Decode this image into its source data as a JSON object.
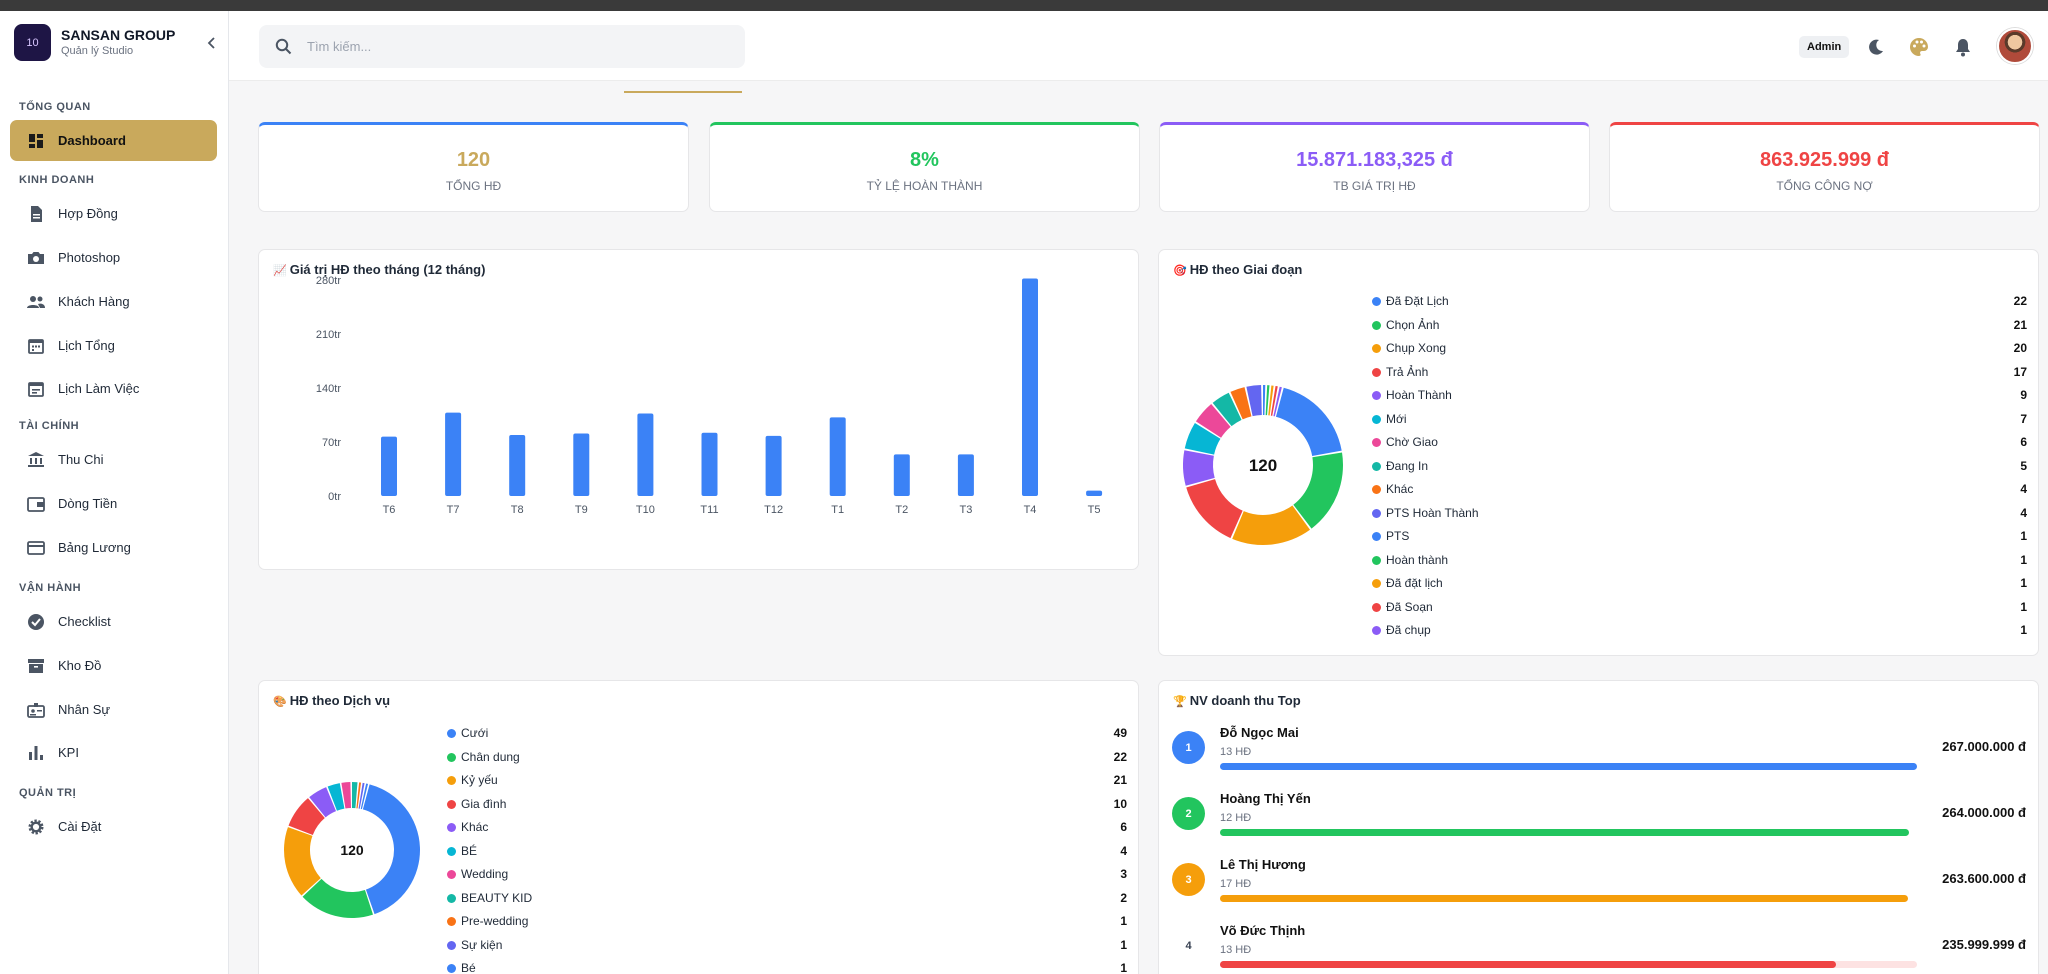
{
  "brand": {
    "name": "SANSAN GROUP",
    "subtitle": "Quản lý Studio",
    "logo_text": "10"
  },
  "sidebar": {
    "sections": [
      {
        "label": "TỔNG QUAN",
        "items": [
          {
            "label": "Dashboard",
            "icon": "dashboard-icon",
            "active": true
          }
        ]
      },
      {
        "label": "KINH DOANH",
        "items": [
          {
            "label": "Hợp Đồng",
            "icon": "document-icon"
          },
          {
            "label": "Photoshop",
            "icon": "camera-icon"
          },
          {
            "label": "Khách Hàng",
            "icon": "people-icon"
          },
          {
            "label": "Lịch Tổng",
            "icon": "calendar-icon"
          },
          {
            "label": "Lịch Làm Việc",
            "icon": "calendar-note-icon"
          }
        ]
      },
      {
        "label": "TÀI CHÍNH",
        "items": [
          {
            "label": "Thu Chi",
            "icon": "bank-icon"
          },
          {
            "label": "Dòng Tiền",
            "icon": "wallet-icon"
          },
          {
            "label": "Bảng Lương",
            "icon": "card-icon"
          }
        ]
      },
      {
        "label": "VẬN HÀNH",
        "items": [
          {
            "label": "Checklist",
            "icon": "check-circle-icon"
          },
          {
            "label": "Kho Đồ",
            "icon": "inventory-icon"
          },
          {
            "label": "Nhân Sự",
            "icon": "badge-icon"
          },
          {
            "label": "KPI",
            "icon": "bar-chart-icon"
          }
        ]
      },
      {
        "label": "QUẢN TRỊ",
        "items": [
          {
            "label": "Cài Đặt",
            "icon": "gear-icon"
          }
        ]
      }
    ]
  },
  "header": {
    "search_placeholder": "Tìm kiếm...",
    "role_badge": "Admin"
  },
  "stats": [
    {
      "value": "120",
      "label": "TỔNG HĐ",
      "color": "#c9a95c",
      "top": "#3b82f6"
    },
    {
      "value": "8%",
      "label": "TỶ LỆ HOÀN THÀNH",
      "color": "#22c55e",
      "top": "#22c55e"
    },
    {
      "value": "15.871.183,325 đ",
      "label": "TB GIÁ TRỊ HĐ",
      "color": "#8b5cf6",
      "top": "#8b5cf6"
    },
    {
      "value": "863.925.999 đ",
      "label": "TỔNG CÔNG NỢ",
      "color": "#ef4444",
      "top": "#ef4444"
    }
  ],
  "monthly": {
    "title": "Giá trị HĐ theo tháng (12 tháng)",
    "emoji": "📈"
  },
  "stage": {
    "title": "HĐ theo Giai đoạn",
    "emoji": "🎯",
    "total": "120"
  },
  "service": {
    "title": "HĐ theo Dịch vụ",
    "emoji": "🎨",
    "total": "120"
  },
  "top": {
    "title": "NV doanh thu Top",
    "emoji": "🏆",
    "employees": [
      {
        "rank": "1",
        "name": "Đỗ Ngọc Mai",
        "count": "13 HĐ",
        "amount": "267.000.000 đ",
        "fraction": 1.0,
        "color": "#3b82f6"
      },
      {
        "rank": "2",
        "name": "Hoàng Thị Yến",
        "count": "12 HĐ",
        "amount": "264.000.000 đ",
        "fraction": 0.989,
        "color": "#22c55e"
      },
      {
        "rank": "3",
        "name": "Lê Thị Hương",
        "count": "17 HĐ",
        "amount": "263.600.000 đ",
        "fraction": 0.987,
        "color": "#f59e0b"
      },
      {
        "rank": "4",
        "name": "Võ Đức Thịnh",
        "count": "13 HĐ",
        "amount": "235.999.999 đ",
        "fraction": 0.884,
        "color": "#ef4444"
      }
    ]
  },
  "chart_data": [
    {
      "type": "bar",
      "title": "Giá trị HĐ theo tháng (12 tháng)",
      "categories": [
        "T6",
        "T7",
        "T8",
        "T9",
        "T10",
        "T11",
        "T12",
        "T1",
        "T2",
        "T3",
        "T4",
        "T5"
      ],
      "values": [
        77,
        108,
        79,
        81,
        107,
        82,
        78,
        102,
        54,
        54,
        282,
        7
      ],
      "y_ticks": [
        "0tr",
        "70tr",
        "140tr",
        "210tr",
        "280tr"
      ],
      "ylim": [
        0,
        280
      ],
      "grid": false,
      "color": "#3b82f6"
    },
    {
      "type": "pie",
      "title": "HĐ theo Giai đoạn",
      "center_label": "120",
      "slices": [
        {
          "label": "Đã Đặt Lịch",
          "value": 22,
          "color": "#3b82f6"
        },
        {
          "label": "Chọn Ảnh",
          "value": 21,
          "color": "#22c55e"
        },
        {
          "label": "Chụp Xong",
          "value": 20,
          "color": "#f59e0b"
        },
        {
          "label": "Trả Ảnh",
          "value": 17,
          "color": "#ef4444"
        },
        {
          "label": "Hoàn Thành",
          "value": 9,
          "color": "#8b5cf6"
        },
        {
          "label": "Mới",
          "value": 7,
          "color": "#06b6d4"
        },
        {
          "label": "Chờ Giao",
          "value": 6,
          "color": "#ec4899"
        },
        {
          "label": "Đang In",
          "value": 5,
          "color": "#14b8a6"
        },
        {
          "label": "Khác",
          "value": 4,
          "color": "#f97316"
        },
        {
          "label": "PTS Hoàn Thành",
          "value": 4,
          "color": "#6366f1"
        },
        {
          "label": "PTS",
          "value": 1,
          "color": "#3b82f6"
        },
        {
          "label": "Hoàn thành",
          "value": 1,
          "color": "#22c55e"
        },
        {
          "label": "Đã đặt lịch",
          "value": 1,
          "color": "#f59e0b"
        },
        {
          "label": "Đã Soạn",
          "value": 1,
          "color": "#ef4444"
        },
        {
          "label": "Đã chụp",
          "value": 1,
          "color": "#8b5cf6"
        }
      ]
    },
    {
      "type": "pie",
      "title": "HĐ theo Dịch vụ",
      "center_label": "120",
      "slices": [
        {
          "label": "Cưới",
          "value": 49,
          "color": "#3b82f6"
        },
        {
          "label": "Chân dung",
          "value": 22,
          "color": "#22c55e"
        },
        {
          "label": "Kỷ yếu",
          "value": 21,
          "color": "#f59e0b"
        },
        {
          "label": "Gia đình",
          "value": 10,
          "color": "#ef4444"
        },
        {
          "label": "Khác",
          "value": 6,
          "color": "#8b5cf6"
        },
        {
          "label": "BÉ",
          "value": 4,
          "color": "#06b6d4"
        },
        {
          "label": "Wedding",
          "value": 3,
          "color": "#ec4899"
        },
        {
          "label": "BEAUTY KID",
          "value": 2,
          "color": "#14b8a6"
        },
        {
          "label": "Pre-wedding",
          "value": 1,
          "color": "#f97316"
        },
        {
          "label": "Sự kiện",
          "value": 1,
          "color": "#6366f1"
        },
        {
          "label": "Bé",
          "value": 1,
          "color": "#3b82f6"
        }
      ]
    }
  ]
}
